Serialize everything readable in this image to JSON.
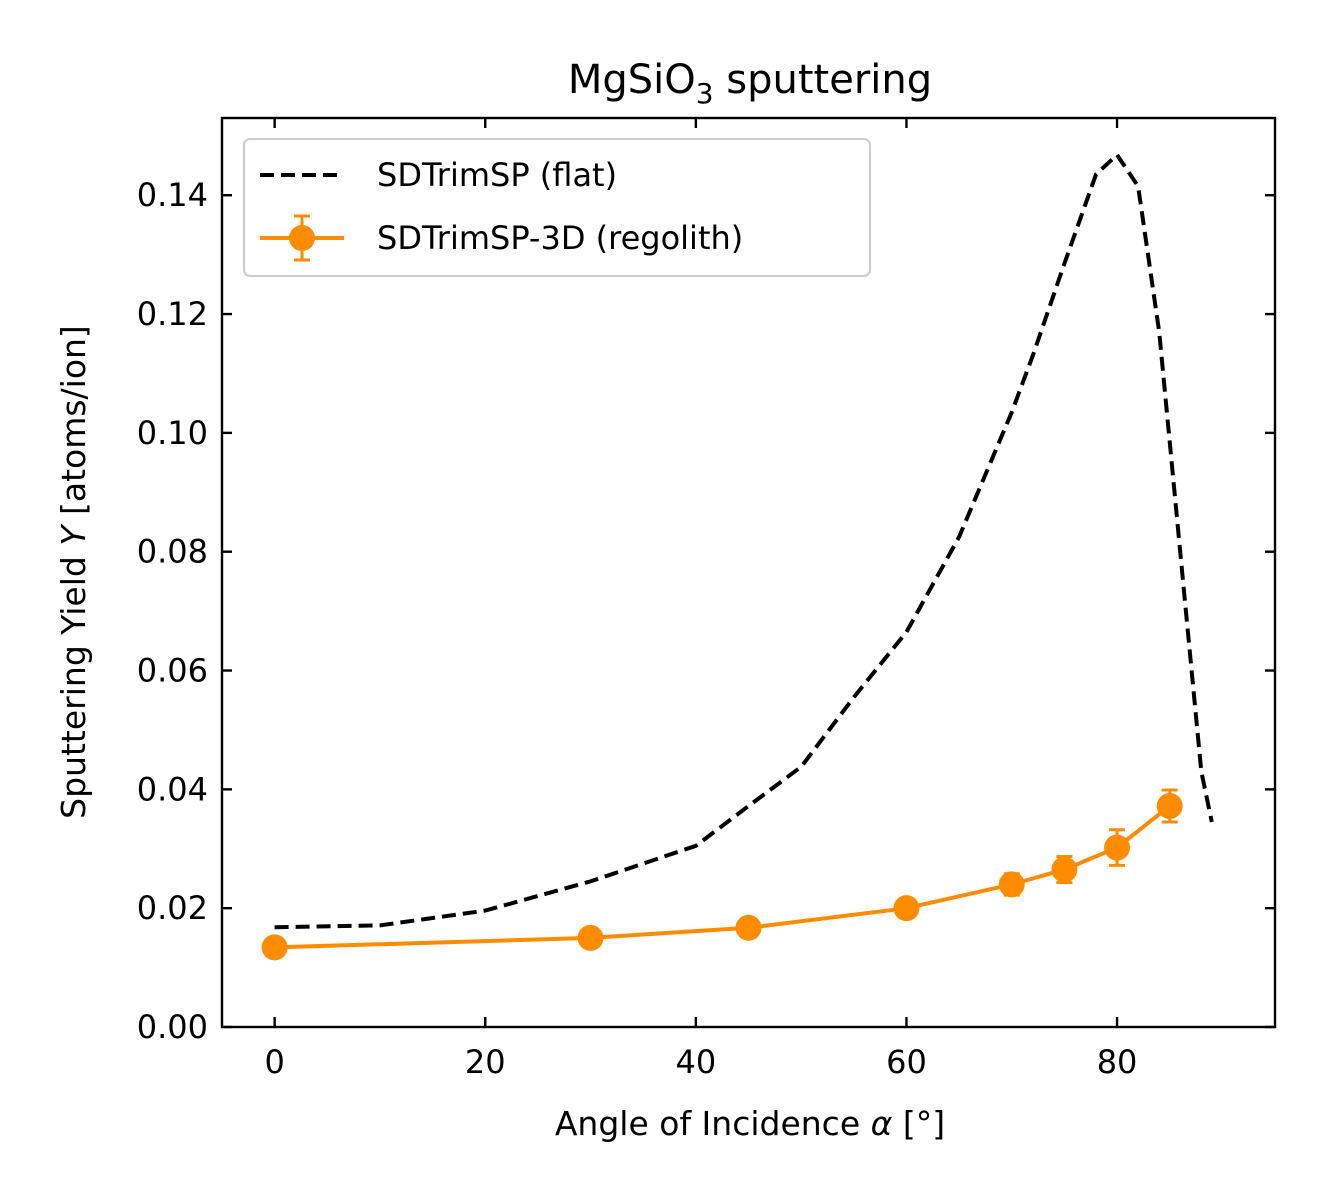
{
  "chart_data": {
    "type": "line",
    "title": {
      "main": "MgSiO",
      "sub": "3",
      "rest": " sputtering"
    },
    "xlabel": {
      "pre": "Angle of Incidence ",
      "sym": "α",
      "post": " [°]"
    },
    "ylabel": {
      "pre": "Sputtering Yield ",
      "sym": "Y",
      "post": " [atoms/ion]"
    },
    "xlim": [
      -5,
      95
    ],
    "ylim": [
      0,
      0.153
    ],
    "xticks": [
      {
        "value": 0,
        "label": "0"
      },
      {
        "value": 20,
        "label": "20"
      },
      {
        "value": 40,
        "label": "40"
      },
      {
        "value": 60,
        "label": "60"
      },
      {
        "value": 80,
        "label": "80"
      }
    ],
    "yticks": [
      {
        "value": 0.0,
        "label": "0.00"
      },
      {
        "value": 0.02,
        "label": "0.02"
      },
      {
        "value": 0.04,
        "label": "0.04"
      },
      {
        "value": 0.06,
        "label": "0.06"
      },
      {
        "value": 0.08,
        "label": "0.08"
      },
      {
        "value": 0.1,
        "label": "0.10"
      },
      {
        "value": 0.12,
        "label": "0.12"
      },
      {
        "value": 0.14,
        "label": "0.14"
      }
    ],
    "grid": false,
    "legend_position": "upper-left",
    "series": [
      {
        "name": "SDTrimSP (flat)",
        "style": "dashed",
        "color": "#000000",
        "x": [
          0,
          10,
          20,
          30,
          40,
          45,
          50,
          55,
          60,
          65,
          70,
          72,
          75,
          78,
          80,
          82,
          84,
          86,
          88,
          89
        ],
        "y": [
          0.0168,
          0.0171,
          0.0196,
          0.0245,
          0.0305,
          0.0372,
          0.0438,
          0.0555,
          0.0665,
          0.0825,
          0.1035,
          0.113,
          0.1285,
          0.1435,
          0.1468,
          0.1415,
          0.117,
          0.08,
          0.043,
          0.0345
        ]
      },
      {
        "name": "SDTrimSP-3D (regolith)",
        "style": "solid-markers-errorbars",
        "color": "#ff8c00",
        "x": [
          0,
          30,
          45,
          60,
          70,
          75,
          80,
          85
        ],
        "y": [
          0.0134,
          0.015,
          0.0167,
          0.02,
          0.024,
          0.0265,
          0.0302,
          0.0372
        ],
        "yerr": [
          0.0005,
          0.0005,
          0.0005,
          0.0007,
          0.0018,
          0.0022,
          0.003,
          0.0027
        ]
      }
    ]
  }
}
